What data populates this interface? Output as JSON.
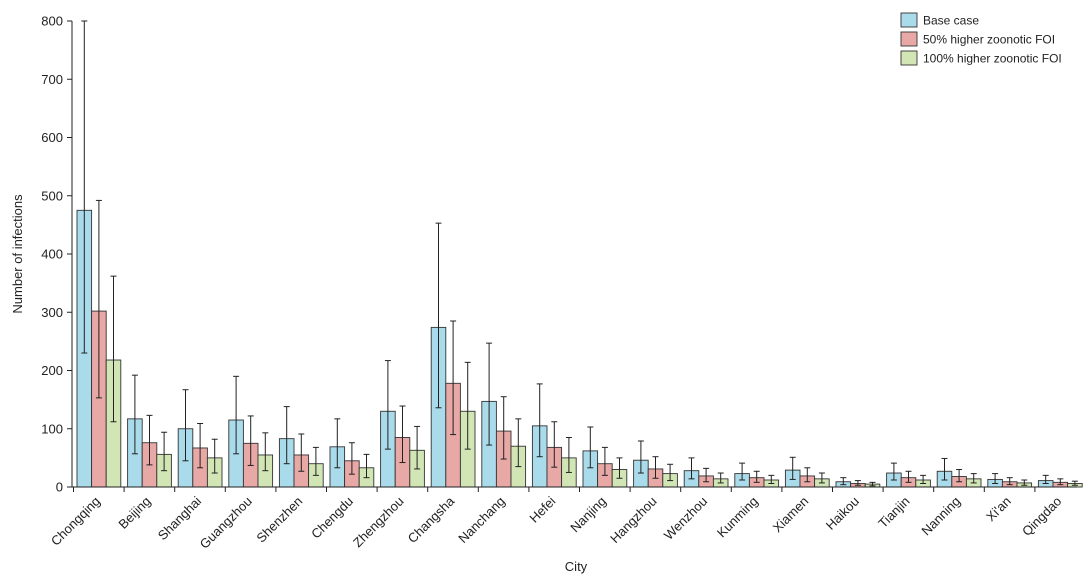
{
  "chart_data": {
    "type": "bar",
    "title": "",
    "xlabel": "City",
    "ylabel": "Number of infections",
    "ylim": [
      0,
      800
    ],
    "yticks": [
      0,
      100,
      200,
      300,
      400,
      500,
      600,
      700,
      800
    ],
    "grid": false,
    "legend_position": "top-right",
    "categories": [
      "Chongqing",
      "Beijing",
      "Shanghai",
      "Guangzhou",
      "Shenzhen",
      "Chengdu",
      "Zhengzhou",
      "Changsha",
      "Nanchang",
      "Hefei",
      "Nanjing",
      "Hangzhou",
      "Wenzhou",
      "Kunming",
      "Xiamen",
      "Haikou",
      "Tianjin",
      "Nanning",
      "Xi'an",
      "Qingdao"
    ],
    "series": [
      {
        "name": "Base case",
        "color": "#a9dbeb",
        "values": [
          475,
          117,
          100,
          115,
          83,
          69,
          130,
          274,
          147,
          105,
          62,
          46,
          28,
          23,
          29,
          9,
          24,
          27,
          13,
          11
        ],
        "err_low": [
          230,
          57,
          45,
          57,
          40,
          33,
          65,
          136,
          72,
          52,
          33,
          24,
          14,
          12,
          13,
          4,
          12,
          12,
          6,
          6
        ],
        "err_high": [
          800,
          192,
          167,
          190,
          138,
          117,
          217,
          453,
          247,
          177,
          103,
          79,
          50,
          41,
          51,
          16,
          41,
          49,
          23,
          20
        ]
      },
      {
        "name": "50% higher zoonotic FOI",
        "color": "#e8a8a5",
        "values": [
          302,
          76,
          67,
          75,
          55,
          45,
          85,
          178,
          96,
          68,
          40,
          31,
          19,
          16,
          19,
          6,
          16,
          18,
          9,
          8
        ],
        "err_low": [
          153,
          38,
          33,
          37,
          27,
          22,
          42,
          90,
          48,
          34,
          20,
          15,
          9,
          8,
          9,
          3,
          8,
          9,
          4,
          4
        ],
        "err_high": [
          492,
          123,
          109,
          122,
          91,
          76,
          139,
          285,
          155,
          112,
          68,
          52,
          32,
          27,
          33,
          11,
          27,
          30,
          16,
          14
        ]
      },
      {
        "name": "100% higher zoonotic FOI",
        "color": "#d2e6b5",
        "values": [
          218,
          56,
          50,
          55,
          40,
          33,
          63,
          130,
          70,
          50,
          30,
          23,
          14,
          12,
          14,
          5,
          12,
          14,
          7,
          6
        ],
        "err_low": [
          112,
          28,
          24,
          28,
          20,
          16,
          31,
          65,
          35,
          25,
          15,
          11,
          7,
          6,
          7,
          2,
          6,
          7,
          3,
          3
        ],
        "err_high": [
          362,
          94,
          82,
          93,
          68,
          56,
          104,
          214,
          117,
          85,
          50,
          39,
          24,
          20,
          24,
          8,
          20,
          23,
          12,
          10
        ]
      }
    ]
  }
}
